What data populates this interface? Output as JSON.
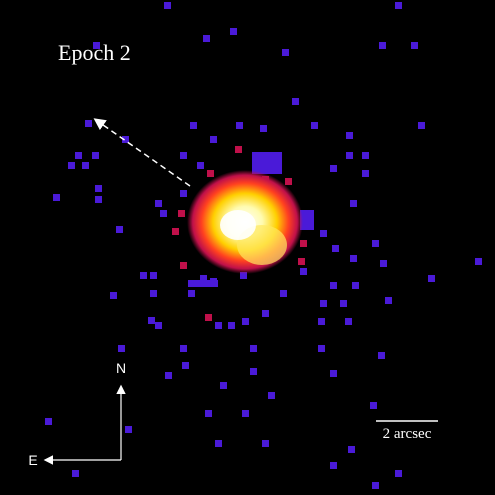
{
  "image": {
    "label": "Epoch 2",
    "compass": {
      "north": "N",
      "east": "E"
    },
    "scale_bar": "2 arcsec"
  }
}
